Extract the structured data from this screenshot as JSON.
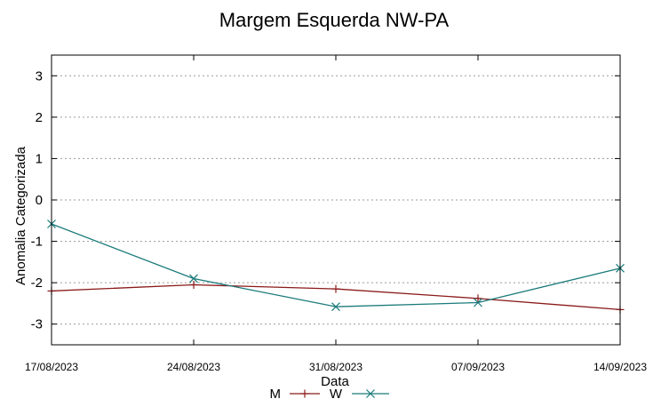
{
  "chart_data": {
    "type": "line",
    "title": "Margem Esquerda NW-PA",
    "xlabel": "Data",
    "ylabel": "Anomalia Categorizada",
    "categories": [
      "17/08/2023",
      "24/08/2023",
      "31/08/2023",
      "07/09/2023",
      "14/09/2023"
    ],
    "ylim": [
      -3.5,
      3.5
    ],
    "yticks": [
      -3,
      -2,
      -1,
      0,
      1,
      2,
      3
    ],
    "grid": true,
    "legend_position": "bottom",
    "series": [
      {
        "name": "M",
        "values": [
          -2.2,
          -2.05,
          -2.15,
          -2.38,
          -2.65
        ],
        "color": "#8b1a1a",
        "marker": "plus"
      },
      {
        "name": "W",
        "values": [
          -0.58,
          -1.9,
          -2.58,
          -2.48,
          -1.65
        ],
        "color": "#1a7a7a",
        "marker": "x"
      }
    ]
  }
}
